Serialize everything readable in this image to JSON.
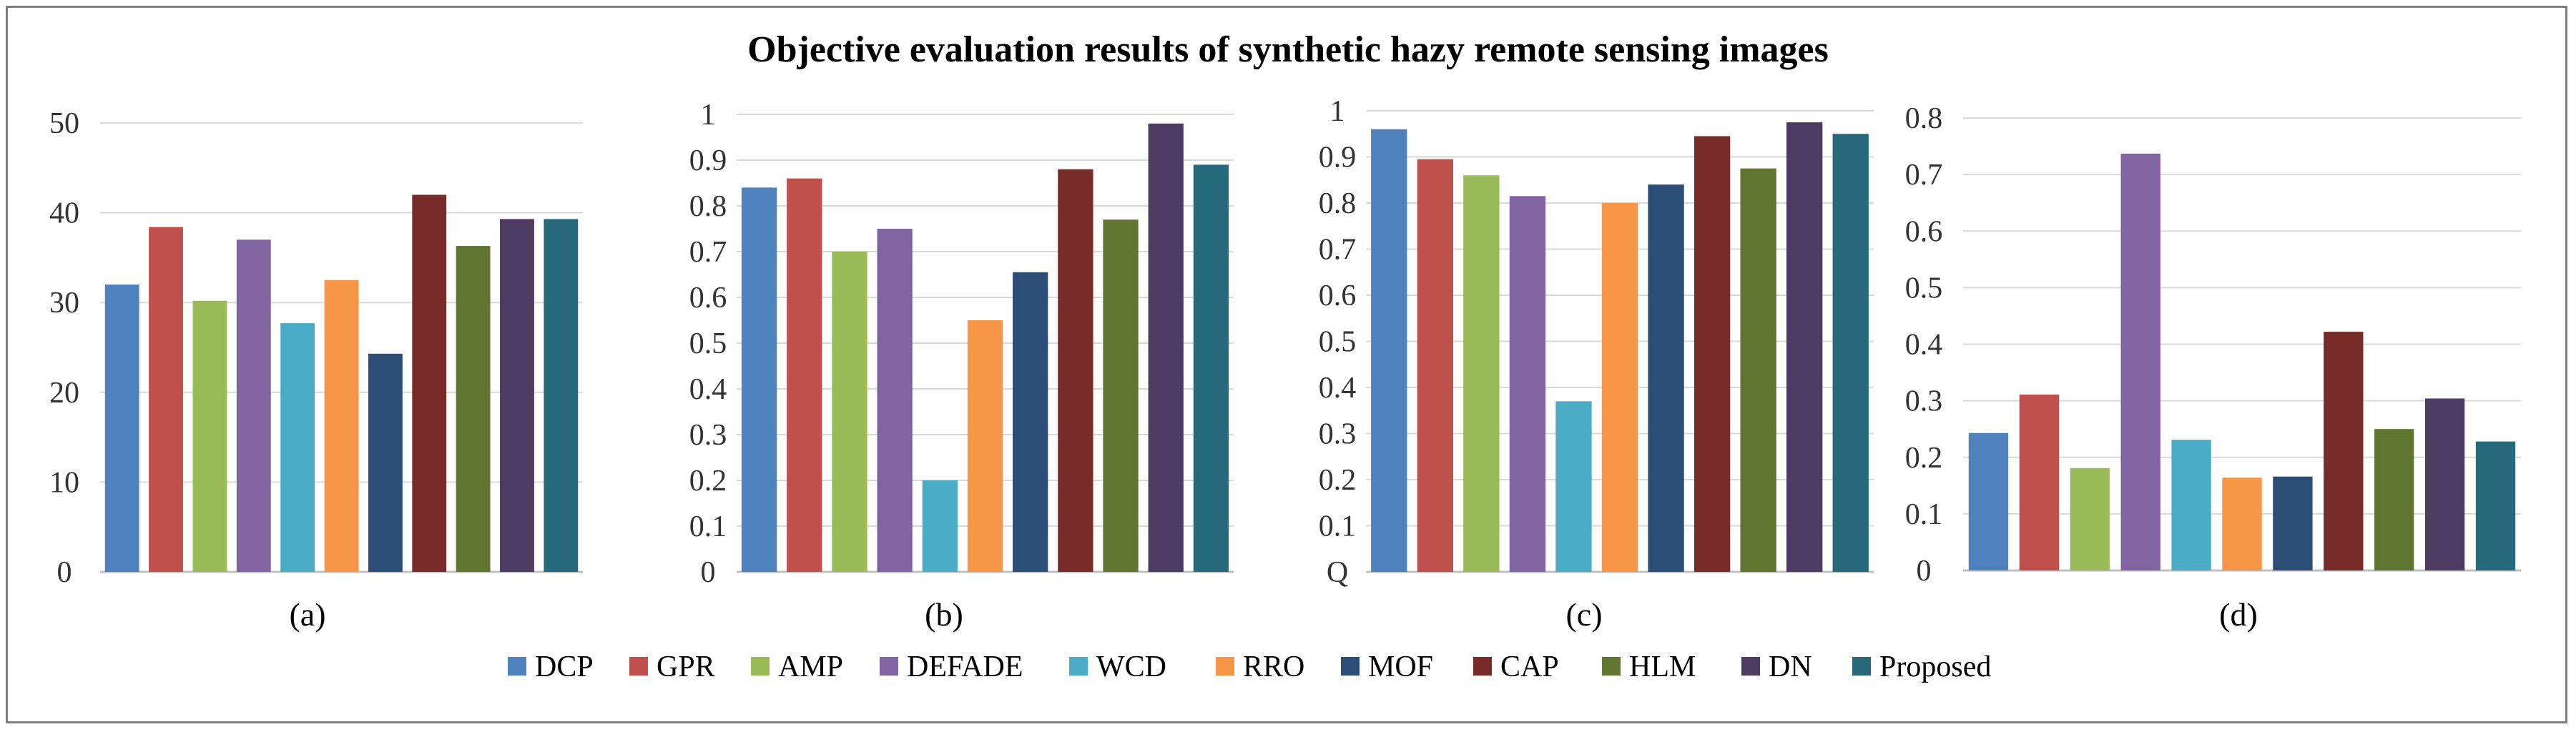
{
  "title": "Objective evaluation results of  synthetic hazy remote sensing  images",
  "legend": [
    {
      "name": "DCP",
      "color": "#4F81BD"
    },
    {
      "name": "GPR",
      "color": "#C0504D"
    },
    {
      "name": "AMP",
      "color": "#9BBB59"
    },
    {
      "name": "DEFADE",
      "color": "#8064A2"
    },
    {
      "name": "WCD",
      "color": "#4BACC6"
    },
    {
      "name": "RRO",
      "color": "#F79646"
    },
    {
      "name": "MOF",
      "color": "#2C4D75"
    },
    {
      "name": "CAP",
      "color": "#772C2A"
    },
    {
      "name": "HLM",
      "color": "#5F7530"
    },
    {
      "name": "DN",
      "color": "#4D3B62"
    },
    {
      "name": "Proposed",
      "color": "#276A7C"
    }
  ],
  "chart_data": [
    {
      "type": "bar",
      "label": "(a)",
      "categories": [
        "DCP",
        "GPR",
        "AMP",
        "DEFADE",
        "WCD",
        "RRO",
        "MOF",
        "CAP",
        "HLM",
        "DN",
        "Proposed"
      ],
      "values": [
        32.0,
        38.4,
        30.2,
        37.0,
        27.7,
        32.5,
        24.3,
        42.0,
        36.3,
        39.3,
        39.3
      ],
      "ylim": [
        0,
        50
      ],
      "yticks": [
        "0",
        "10",
        "20",
        "30",
        "40",
        "50"
      ],
      "tick_values": [
        0,
        10,
        20,
        30,
        40,
        50
      ]
    },
    {
      "type": "bar",
      "label": "(b)",
      "categories": [
        "DCP",
        "GPR",
        "AMP",
        "DEFADE",
        "WCD",
        "RRO",
        "MOF",
        "CAP",
        "HLM",
        "DN",
        "Proposed"
      ],
      "values": [
        0.84,
        0.86,
        0.7,
        0.75,
        0.2,
        0.55,
        0.655,
        0.88,
        0.77,
        0.98,
        0.89
      ],
      "ylim": [
        0,
        1
      ],
      "yticks": [
        "0",
        "0.1",
        "0.2",
        "0.3",
        "0.4",
        "0.5",
        "0.6",
        "0.7",
        "0.8",
        "0.9",
        "1"
      ],
      "tick_values": [
        0,
        0.1,
        0.2,
        0.3,
        0.4,
        0.5,
        0.6,
        0.7,
        0.8,
        0.9,
        1
      ]
    },
    {
      "type": "bar",
      "label": "(c)",
      "categories": [
        "DCP",
        "GPR",
        "AMP",
        "DEFADE",
        "WCD",
        "RRO",
        "MOF",
        "CAP",
        "HLM",
        "DN",
        "Proposed"
      ],
      "values": [
        0.96,
        0.895,
        0.86,
        0.815,
        0.37,
        0.8,
        0.84,
        0.945,
        0.875,
        0.975,
        0.95
      ],
      "ylim": [
        0,
        1
      ],
      "yticks": [
        "Q",
        "0.1",
        "0.2",
        "0.3",
        "0.4",
        "0.5",
        "0.6",
        "0.7",
        "0.8",
        "0.9",
        "1"
      ],
      "tick_values": [
        0,
        0.1,
        0.2,
        0.3,
        0.4,
        0.5,
        0.6,
        0.7,
        0.8,
        0.9,
        1
      ]
    },
    {
      "type": "bar",
      "label": "(d)",
      "categories": [
        "DCP",
        "GPR",
        "AMP",
        "DEFADE",
        "WCD",
        "RRO",
        "MOF",
        "CAP",
        "HLM",
        "DN",
        "Proposed"
      ],
      "values": [
        0.243,
        0.311,
        0.181,
        0.737,
        0.231,
        0.164,
        0.166,
        0.422,
        0.25,
        0.304,
        0.228
      ],
      "ylim": [
        0,
        0.8
      ],
      "yticks": [
        "0",
        "0.1",
        "0.2",
        "0.3",
        "0.4",
        "0.5",
        "0.6",
        "0.7",
        "0.8"
      ],
      "tick_values": [
        0,
        0.1,
        0.2,
        0.3,
        0.4,
        0.5,
        0.6,
        0.7,
        0.8
      ]
    }
  ]
}
